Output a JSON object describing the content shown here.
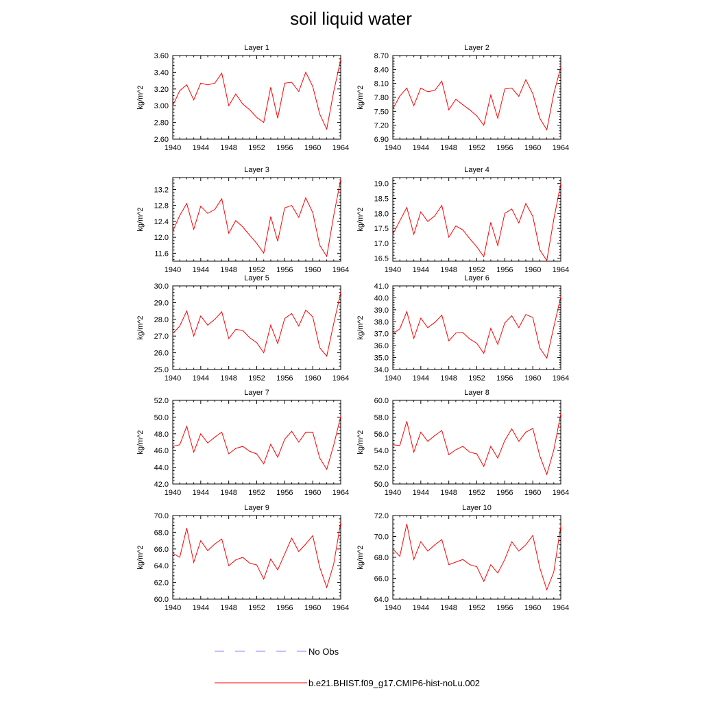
{
  "page_title": "soil liquid water",
  "legend": {
    "items": [
      {
        "label": "No Obs",
        "color": "#7f7fff",
        "style": "dashed"
      },
      {
        "label": "b.e21.BHIST.f09_g17.CMIP6-hist-noLu.002",
        "color": "#ff0000",
        "style": "solid"
      }
    ]
  },
  "chart_data": [
    {
      "type": "line",
      "title": "Layer 1",
      "ylabel": "kg/m^2",
      "xlabel": "",
      "xlim": [
        1940,
        1964
      ],
      "xticks": [
        "1940",
        "1944",
        "1948",
        "1952",
        "1956",
        "1960",
        "1964"
      ],
      "ylim": [
        2.6,
        3.6
      ],
      "yticks": [
        "2.60",
        "2.80",
        "3.00",
        "3.20",
        "3.40",
        "3.60"
      ],
      "x": [
        1940,
        1941,
        1942,
        1943,
        1944,
        1945,
        1946,
        1947,
        1948,
        1949,
        1950,
        1951,
        1952,
        1953,
        1954,
        1955,
        1956,
        1957,
        1958,
        1959,
        1960,
        1961,
        1962,
        1963,
        1964
      ],
      "series": [
        {
          "color": "#ff0000",
          "values": [
            3.0,
            3.18,
            3.25,
            3.07,
            3.27,
            3.25,
            3.27,
            3.39,
            3.0,
            3.14,
            3.02,
            2.95,
            2.86,
            2.8,
            3.22,
            2.85,
            3.27,
            3.28,
            3.17,
            3.4,
            3.23,
            2.9,
            2.72,
            3.17,
            3.55
          ]
        }
      ]
    },
    {
      "type": "line",
      "title": "Layer 2",
      "ylabel": "kg/m^2",
      "xlabel": "",
      "xlim": [
        1940,
        1964
      ],
      "xticks": [
        "1940",
        "1944",
        "1948",
        "1952",
        "1956",
        "1960",
        "1964"
      ],
      "ylim": [
        6.9,
        8.7
      ],
      "yticks": [
        "6.90",
        "7.20",
        "7.50",
        "7.80",
        "8.10",
        "8.40",
        "8.70"
      ],
      "x": [
        1940,
        1941,
        1942,
        1943,
        1944,
        1945,
        1946,
        1947,
        1948,
        1949,
        1950,
        1951,
        1952,
        1953,
        1954,
        1955,
        1956,
        1957,
        1958,
        1959,
        1960,
        1961,
        1962,
        1963,
        1964
      ],
      "series": [
        {
          "color": "#ff0000",
          "values": [
            7.55,
            7.83,
            8.0,
            7.62,
            8.0,
            7.92,
            7.95,
            8.15,
            7.53,
            7.76,
            7.64,
            7.53,
            7.4,
            7.2,
            7.85,
            7.35,
            7.98,
            8.0,
            7.82,
            8.18,
            7.88,
            7.35,
            7.1,
            7.88,
            8.45
          ]
        }
      ]
    },
    {
      "type": "line",
      "title": "Layer 3",
      "ylabel": "kg/m^2",
      "xlabel": "",
      "xlim": [
        1940,
        1964
      ],
      "xticks": [
        "1940",
        "1944",
        "1948",
        "1952",
        "1956",
        "1960",
        "1964"
      ],
      "ylim": [
        11.4,
        13.5
      ],
      "yticks": [
        "11.6",
        "12.0",
        "12.4",
        "12.8",
        "13.2"
      ],
      "x": [
        1940,
        1941,
        1942,
        1943,
        1944,
        1945,
        1946,
        1947,
        1948,
        1949,
        1950,
        1951,
        1952,
        1953,
        1954,
        1955,
        1956,
        1957,
        1958,
        1959,
        1960,
        1961,
        1962,
        1963,
        1964
      ],
      "series": [
        {
          "color": "#ff0000",
          "values": [
            12.15,
            12.55,
            12.85,
            12.2,
            12.78,
            12.6,
            12.7,
            12.97,
            12.1,
            12.42,
            12.26,
            12.05,
            11.85,
            11.6,
            12.52,
            11.9,
            12.74,
            12.8,
            12.5,
            12.99,
            12.62,
            11.8,
            11.52,
            12.55,
            13.45
          ]
        }
      ]
    },
    {
      "type": "line",
      "title": "Layer 4",
      "ylabel": "kg/m^2",
      "xlabel": "",
      "xlim": [
        1940,
        1964
      ],
      "xticks": [
        "1940",
        "1944",
        "1948",
        "1952",
        "1956",
        "1960",
        "1964"
      ],
      "ylim": [
        16.4,
        19.2
      ],
      "yticks": [
        "16.5",
        "17.0",
        "17.5",
        "18.0",
        "18.5",
        "19.0"
      ],
      "x": [
        1940,
        1941,
        1942,
        1943,
        1944,
        1945,
        1946,
        1947,
        1948,
        1949,
        1950,
        1951,
        1952,
        1953,
        1954,
        1955,
        1956,
        1957,
        1958,
        1959,
        1960,
        1961,
        1962,
        1963,
        1964
      ],
      "series": [
        {
          "color": "#ff0000",
          "values": [
            17.3,
            17.75,
            18.2,
            17.3,
            18.05,
            17.73,
            17.92,
            18.27,
            17.2,
            17.58,
            17.45,
            17.15,
            16.88,
            16.55,
            17.7,
            16.92,
            18.0,
            18.15,
            17.68,
            18.33,
            17.9,
            16.78,
            16.42,
            17.8,
            19.0
          ]
        }
      ]
    },
    {
      "type": "line",
      "title": "Layer 5",
      "ylabel": "kg/m^2",
      "xlabel": "",
      "xlim": [
        1940,
        1964
      ],
      "xticks": [
        "1940",
        "1944",
        "1948",
        "1952",
        "1956",
        "1960",
        "1964"
      ],
      "ylim": [
        25.0,
        30.0
      ],
      "yticks": [
        "25.0",
        "26.0",
        "27.0",
        "28.0",
        "29.0",
        "30.0"
      ],
      "x": [
        1940,
        1941,
        1942,
        1943,
        1944,
        1945,
        1946,
        1947,
        1948,
        1949,
        1950,
        1951,
        1952,
        1953,
        1954,
        1955,
        1956,
        1957,
        1958,
        1959,
        1960,
        1961,
        1962,
        1963,
        1964
      ],
      "series": [
        {
          "color": "#ff0000",
          "values": [
            27.15,
            27.6,
            28.5,
            27.0,
            28.2,
            27.65,
            28.0,
            28.45,
            26.85,
            27.4,
            27.33,
            26.9,
            26.6,
            26.0,
            27.65,
            26.55,
            28.05,
            28.35,
            27.6,
            28.55,
            28.15,
            26.3,
            25.8,
            27.75,
            29.6
          ]
        }
      ]
    },
    {
      "type": "line",
      "title": "Layer 6",
      "ylabel": "kg/m^2",
      "xlabel": "",
      "xlim": [
        1940,
        1964
      ],
      "xticks": [
        "1940",
        "1944",
        "1948",
        "1952",
        "1956",
        "1960",
        "1964"
      ],
      "ylim": [
        34.0,
        41.0
      ],
      "yticks": [
        "34.0",
        "35.0",
        "36.0",
        "37.0",
        "38.0",
        "39.0",
        "40.0",
        "41.0"
      ],
      "x": [
        1940,
        1941,
        1942,
        1943,
        1944,
        1945,
        1946,
        1947,
        1948,
        1949,
        1950,
        1951,
        1952,
        1953,
        1954,
        1955,
        1956,
        1957,
        1958,
        1959,
        1960,
        1961,
        1962,
        1963,
        1964
      ],
      "series": [
        {
          "color": "#ff0000",
          "values": [
            37.0,
            37.4,
            38.85,
            36.6,
            38.3,
            37.5,
            37.95,
            38.55,
            36.4,
            37.05,
            37.1,
            36.55,
            36.2,
            35.35,
            37.45,
            36.1,
            37.9,
            38.5,
            37.5,
            38.6,
            38.35,
            35.8,
            34.95,
            37.55,
            40.1
          ]
        }
      ]
    },
    {
      "type": "line",
      "title": "Layer 7",
      "ylabel": "kg/m^2",
      "xlabel": "",
      "xlim": [
        1940,
        1964
      ],
      "xticks": [
        "1940",
        "1944",
        "1948",
        "1952",
        "1956",
        "1960",
        "1964"
      ],
      "ylim": [
        42.0,
        52.0
      ],
      "yticks": [
        "42.0",
        "44.0",
        "46.0",
        "48.0",
        "50.0",
        "52.0"
      ],
      "x": [
        1940,
        1941,
        1942,
        1943,
        1944,
        1945,
        1946,
        1947,
        1948,
        1949,
        1950,
        1951,
        1952,
        1953,
        1954,
        1955,
        1956,
        1957,
        1958,
        1959,
        1960,
        1961,
        1962,
        1963,
        1964
      ],
      "series": [
        {
          "color": "#ff0000",
          "values": [
            46.5,
            46.7,
            48.9,
            45.8,
            48.0,
            46.9,
            47.6,
            48.2,
            45.6,
            46.25,
            46.5,
            45.9,
            45.6,
            44.4,
            46.75,
            45.2,
            47.35,
            48.3,
            47.0,
            48.2,
            48.2,
            45.1,
            43.75,
            46.65,
            50.1
          ]
        }
      ]
    },
    {
      "type": "line",
      "title": "Layer 8",
      "ylabel": "kg/m^2",
      "xlabel": "",
      "xlim": [
        1940,
        1964
      ],
      "xticks": [
        "1940",
        "1944",
        "1948",
        "1952",
        "1956",
        "1960",
        "1964"
      ],
      "ylim": [
        50.0,
        60.0
      ],
      "yticks": [
        "50.0",
        "52.0",
        "54.0",
        "56.0",
        "58.0",
        "60.0"
      ],
      "x": [
        1940,
        1941,
        1942,
        1943,
        1944,
        1945,
        1946,
        1947,
        1948,
        1949,
        1950,
        1951,
        1952,
        1953,
        1954,
        1955,
        1956,
        1957,
        1958,
        1959,
        1960,
        1961,
        1962,
        1963,
        1964
      ],
      "series": [
        {
          "color": "#ff0000",
          "values": [
            54.7,
            54.6,
            57.5,
            53.8,
            56.2,
            55.1,
            55.8,
            56.4,
            53.5,
            54.1,
            54.5,
            53.8,
            53.6,
            52.1,
            54.5,
            53.1,
            55.2,
            56.6,
            55.1,
            56.2,
            56.65,
            53.35,
            51.15,
            54.05,
            58.4
          ]
        }
      ]
    },
    {
      "type": "line",
      "title": "Layer 9",
      "ylabel": "kg/m^2",
      "xlabel": "",
      "xlim": [
        1940,
        1964
      ],
      "xticks": [
        "1940",
        "1944",
        "1948",
        "1952",
        "1956",
        "1960",
        "1964"
      ],
      "ylim": [
        60.0,
        70.0
      ],
      "yticks": [
        "60.0",
        "62.0",
        "64.0",
        "66.0",
        "68.0",
        "70.0"
      ],
      "x": [
        1940,
        1941,
        1942,
        1943,
        1944,
        1945,
        1946,
        1947,
        1948,
        1949,
        1950,
        1951,
        1952,
        1953,
        1954,
        1955,
        1956,
        1957,
        1958,
        1959,
        1960,
        1961,
        1962,
        1963,
        1964
      ],
      "series": [
        {
          "color": "#ff0000",
          "values": [
            65.5,
            65.0,
            68.5,
            64.4,
            67.0,
            65.8,
            66.6,
            67.2,
            64.0,
            64.7,
            65.0,
            64.3,
            64.1,
            62.4,
            64.8,
            63.5,
            65.4,
            67.3,
            65.7,
            66.6,
            67.6,
            63.8,
            61.4,
            64.2,
            69.2
          ]
        }
      ]
    },
    {
      "type": "line",
      "title": "Layer 10",
      "ylabel": "kg/m^2",
      "xlabel": "",
      "xlim": [
        1940,
        1964
      ],
      "xticks": [
        "1940",
        "1944",
        "1948",
        "1952",
        "1956",
        "1960",
        "1964"
      ],
      "ylim": [
        64.0,
        72.0
      ],
      "yticks": [
        "64.0",
        "66.0",
        "68.0",
        "70.0",
        "72.0"
      ],
      "x": [
        1940,
        1941,
        1942,
        1943,
        1944,
        1945,
        1946,
        1947,
        1948,
        1949,
        1950,
        1951,
        1952,
        1953,
        1954,
        1955,
        1956,
        1957,
        1958,
        1959,
        1960,
        1961,
        1962,
        1963,
        1964
      ],
      "series": [
        {
          "color": "#ff0000",
          "values": [
            68.8,
            68.1,
            71.2,
            67.8,
            69.5,
            68.6,
            69.2,
            69.7,
            67.3,
            67.55,
            67.8,
            67.3,
            67.1,
            65.7,
            67.3,
            66.5,
            67.8,
            69.5,
            68.6,
            69.2,
            70.1,
            67.0,
            64.9,
            66.6,
            71.0
          ]
        }
      ]
    }
  ]
}
